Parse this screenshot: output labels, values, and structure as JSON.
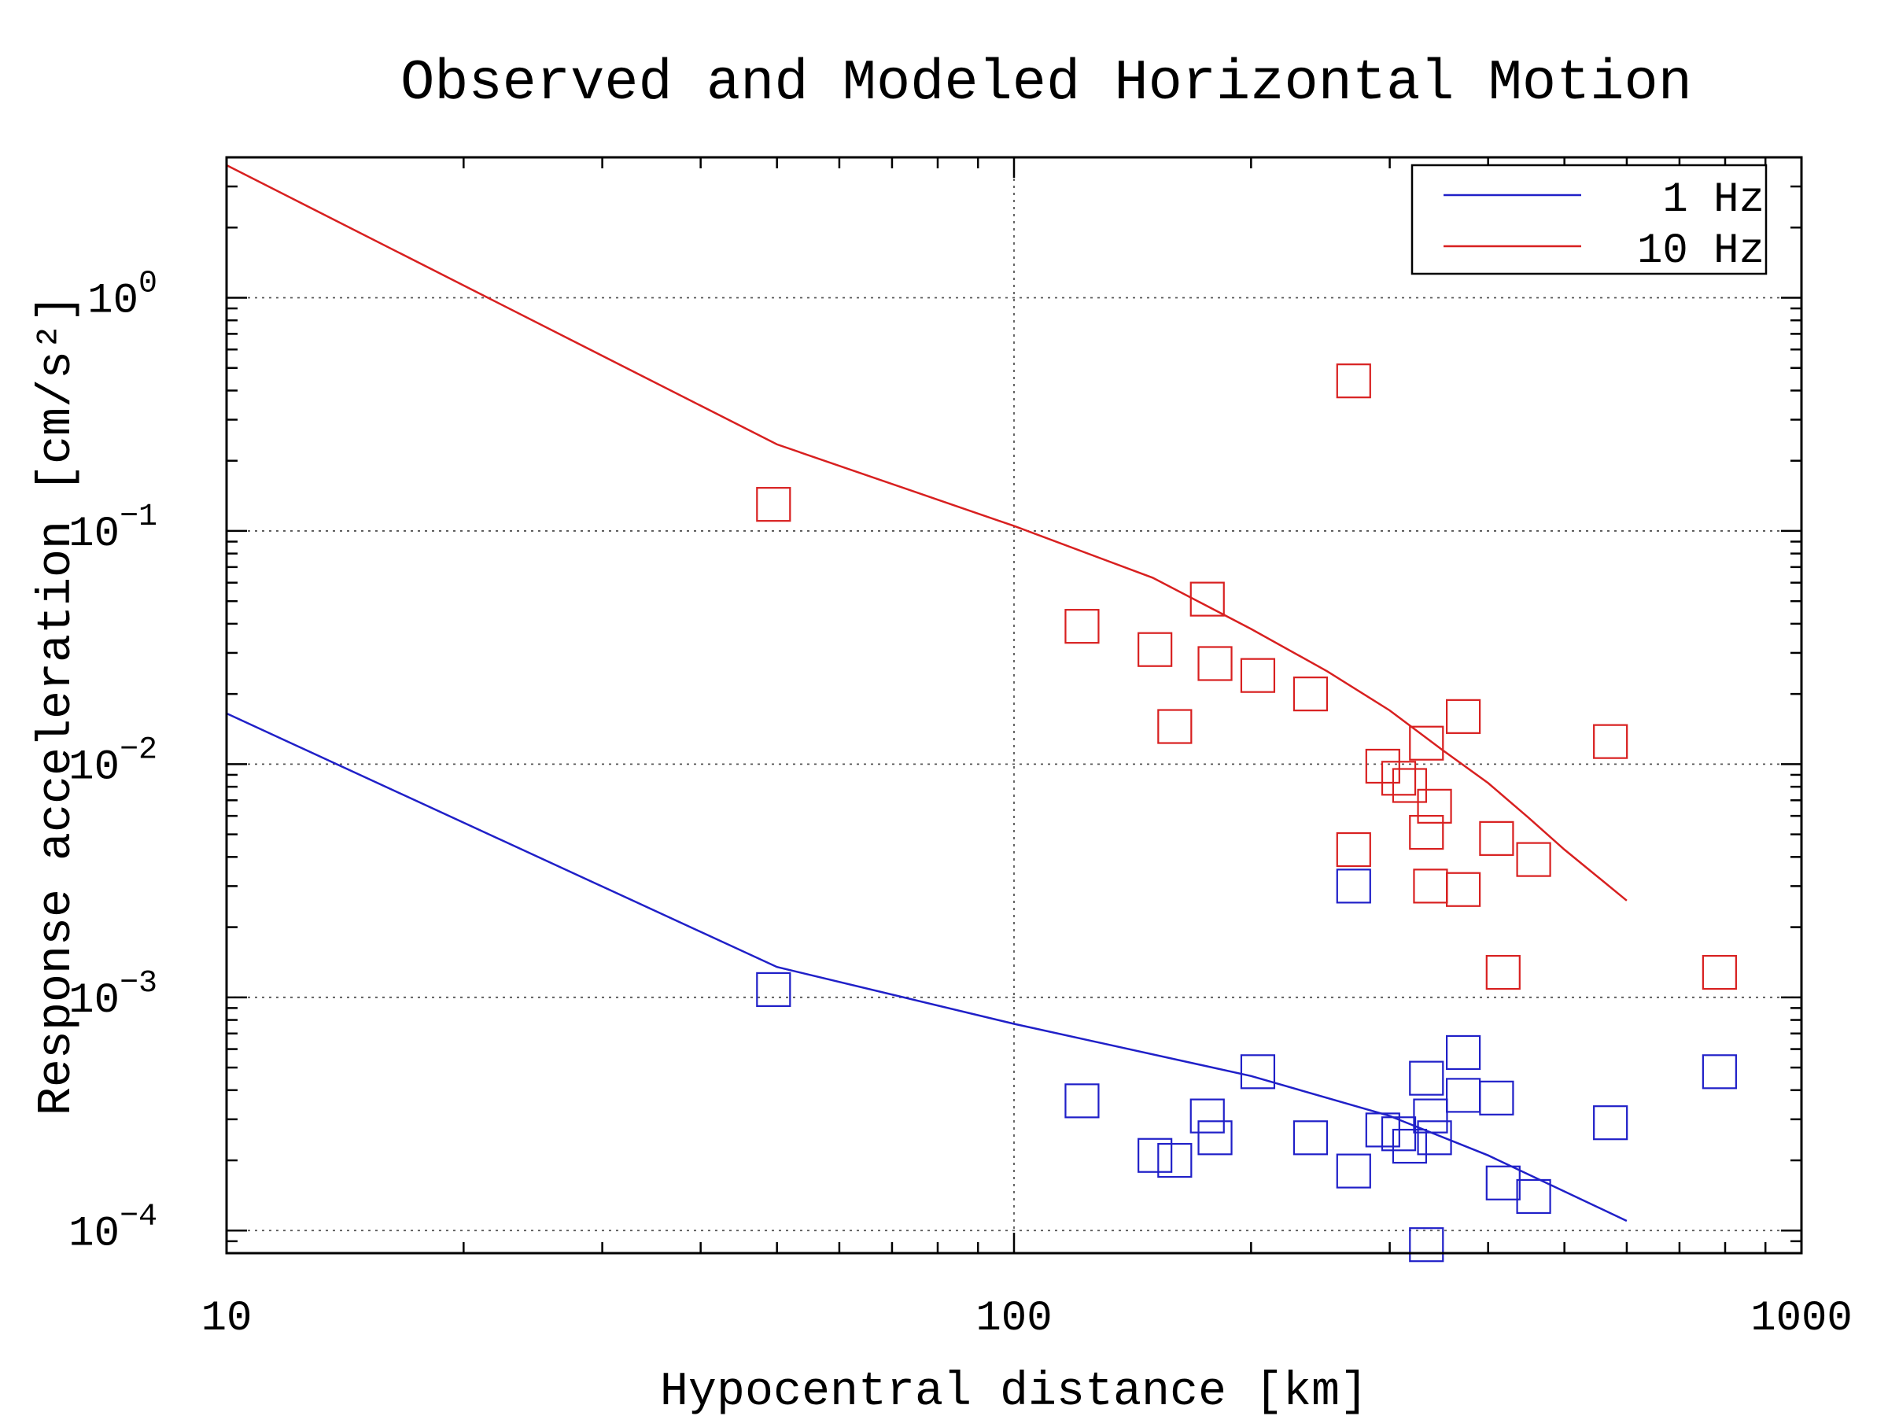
{
  "chart_data": {
    "type": "scatter",
    "title": "Observed and Modeled Horizontal Motion",
    "xlabel": "Hypocentral distance [km]",
    "ylabel": "Response acceleration [cm/s²]",
    "xscale": "log",
    "yscale": "log",
    "xlim": [
      10,
      1000
    ],
    "ylim": [
      8e-05,
      4
    ],
    "x_ticks": [
      {
        "value": 10,
        "label": "10"
      },
      {
        "value": 100,
        "label": "100"
      },
      {
        "value": 1000,
        "label": "1000"
      }
    ],
    "y_ticks": [
      {
        "value": 0.0001,
        "base": "10",
        "exp": "−4"
      },
      {
        "value": 0.001,
        "base": "10",
        "exp": "−3"
      },
      {
        "value": 0.01,
        "base": "10",
        "exp": "−2"
      },
      {
        "value": 0.1,
        "base": "10",
        "exp": "−1"
      },
      {
        "value": 1,
        "base": "10",
        "exp": "0"
      }
    ],
    "grid": "dotted at major ticks",
    "legend_position": "top-right",
    "series": [
      {
        "name": "1 Hz",
        "color": "#2020c8",
        "model_line": [
          [
            10,
            0.0165
          ],
          [
            50,
            0.00135
          ],
          [
            100,
            0.00077
          ],
          [
            200,
            0.00046
          ],
          [
            300,
            0.00031
          ],
          [
            400,
            0.00021
          ],
          [
            600,
            0.00011
          ]
        ],
        "observed": [
          [
            49.5,
            0.00108
          ],
          [
            122,
            0.00036
          ],
          [
            151,
            0.00021
          ],
          [
            160,
            0.0002
          ],
          [
            176,
            0.00031
          ],
          [
            180,
            0.00025
          ],
          [
            204,
            0.00048
          ],
          [
            238,
            0.00025
          ],
          [
            270,
            0.00018
          ],
          [
            270,
            0.003
          ],
          [
            294,
            0.00027
          ],
          [
            308,
            0.00026
          ],
          [
            318,
            0.00023
          ],
          [
            334,
            8.7e-05
          ],
          [
            334,
            0.00045
          ],
          [
            338,
            0.00031
          ],
          [
            342,
            0.00025
          ],
          [
            372,
            0.00058
          ],
          [
            372,
            0.00038
          ],
          [
            410,
            0.00037
          ],
          [
            418,
            0.00016
          ],
          [
            457,
            0.00014
          ],
          [
            572,
            0.00029
          ],
          [
            787,
            0.00048
          ]
        ]
      },
      {
        "name": "10 Hz",
        "color": "#d82020",
        "model_line": [
          [
            10,
            3.7
          ],
          [
            50,
            0.235
          ],
          [
            100,
            0.105
          ],
          [
            150,
            0.063
          ],
          [
            200,
            0.038
          ],
          [
            250,
            0.025
          ],
          [
            300,
            0.017
          ],
          [
            350,
            0.0115
          ],
          [
            400,
            0.0083
          ],
          [
            450,
            0.0059
          ],
          [
            500,
            0.0043
          ],
          [
            600,
            0.0026
          ]
        ],
        "observed": [
          [
            49.5,
            0.13
          ],
          [
            122,
            0.039
          ],
          [
            151,
            0.031
          ],
          [
            160,
            0.0145
          ],
          [
            176,
            0.051
          ],
          [
            180,
            0.027
          ],
          [
            204,
            0.024
          ],
          [
            238,
            0.02
          ],
          [
            270,
            0.44
          ],
          [
            270,
            0.0043
          ],
          [
            294,
            0.0098
          ],
          [
            308,
            0.0087
          ],
          [
            318,
            0.0081
          ],
          [
            334,
            0.0123
          ],
          [
            334,
            0.0051
          ],
          [
            338,
            0.003
          ],
          [
            342,
            0.0066
          ],
          [
            372,
            0.016
          ],
          [
            372,
            0.0029
          ],
          [
            410,
            0.0048
          ],
          [
            418,
            0.00128
          ],
          [
            457,
            0.0039
          ],
          [
            572,
            0.0125
          ],
          [
            787,
            0.00128
          ]
        ]
      }
    ]
  }
}
